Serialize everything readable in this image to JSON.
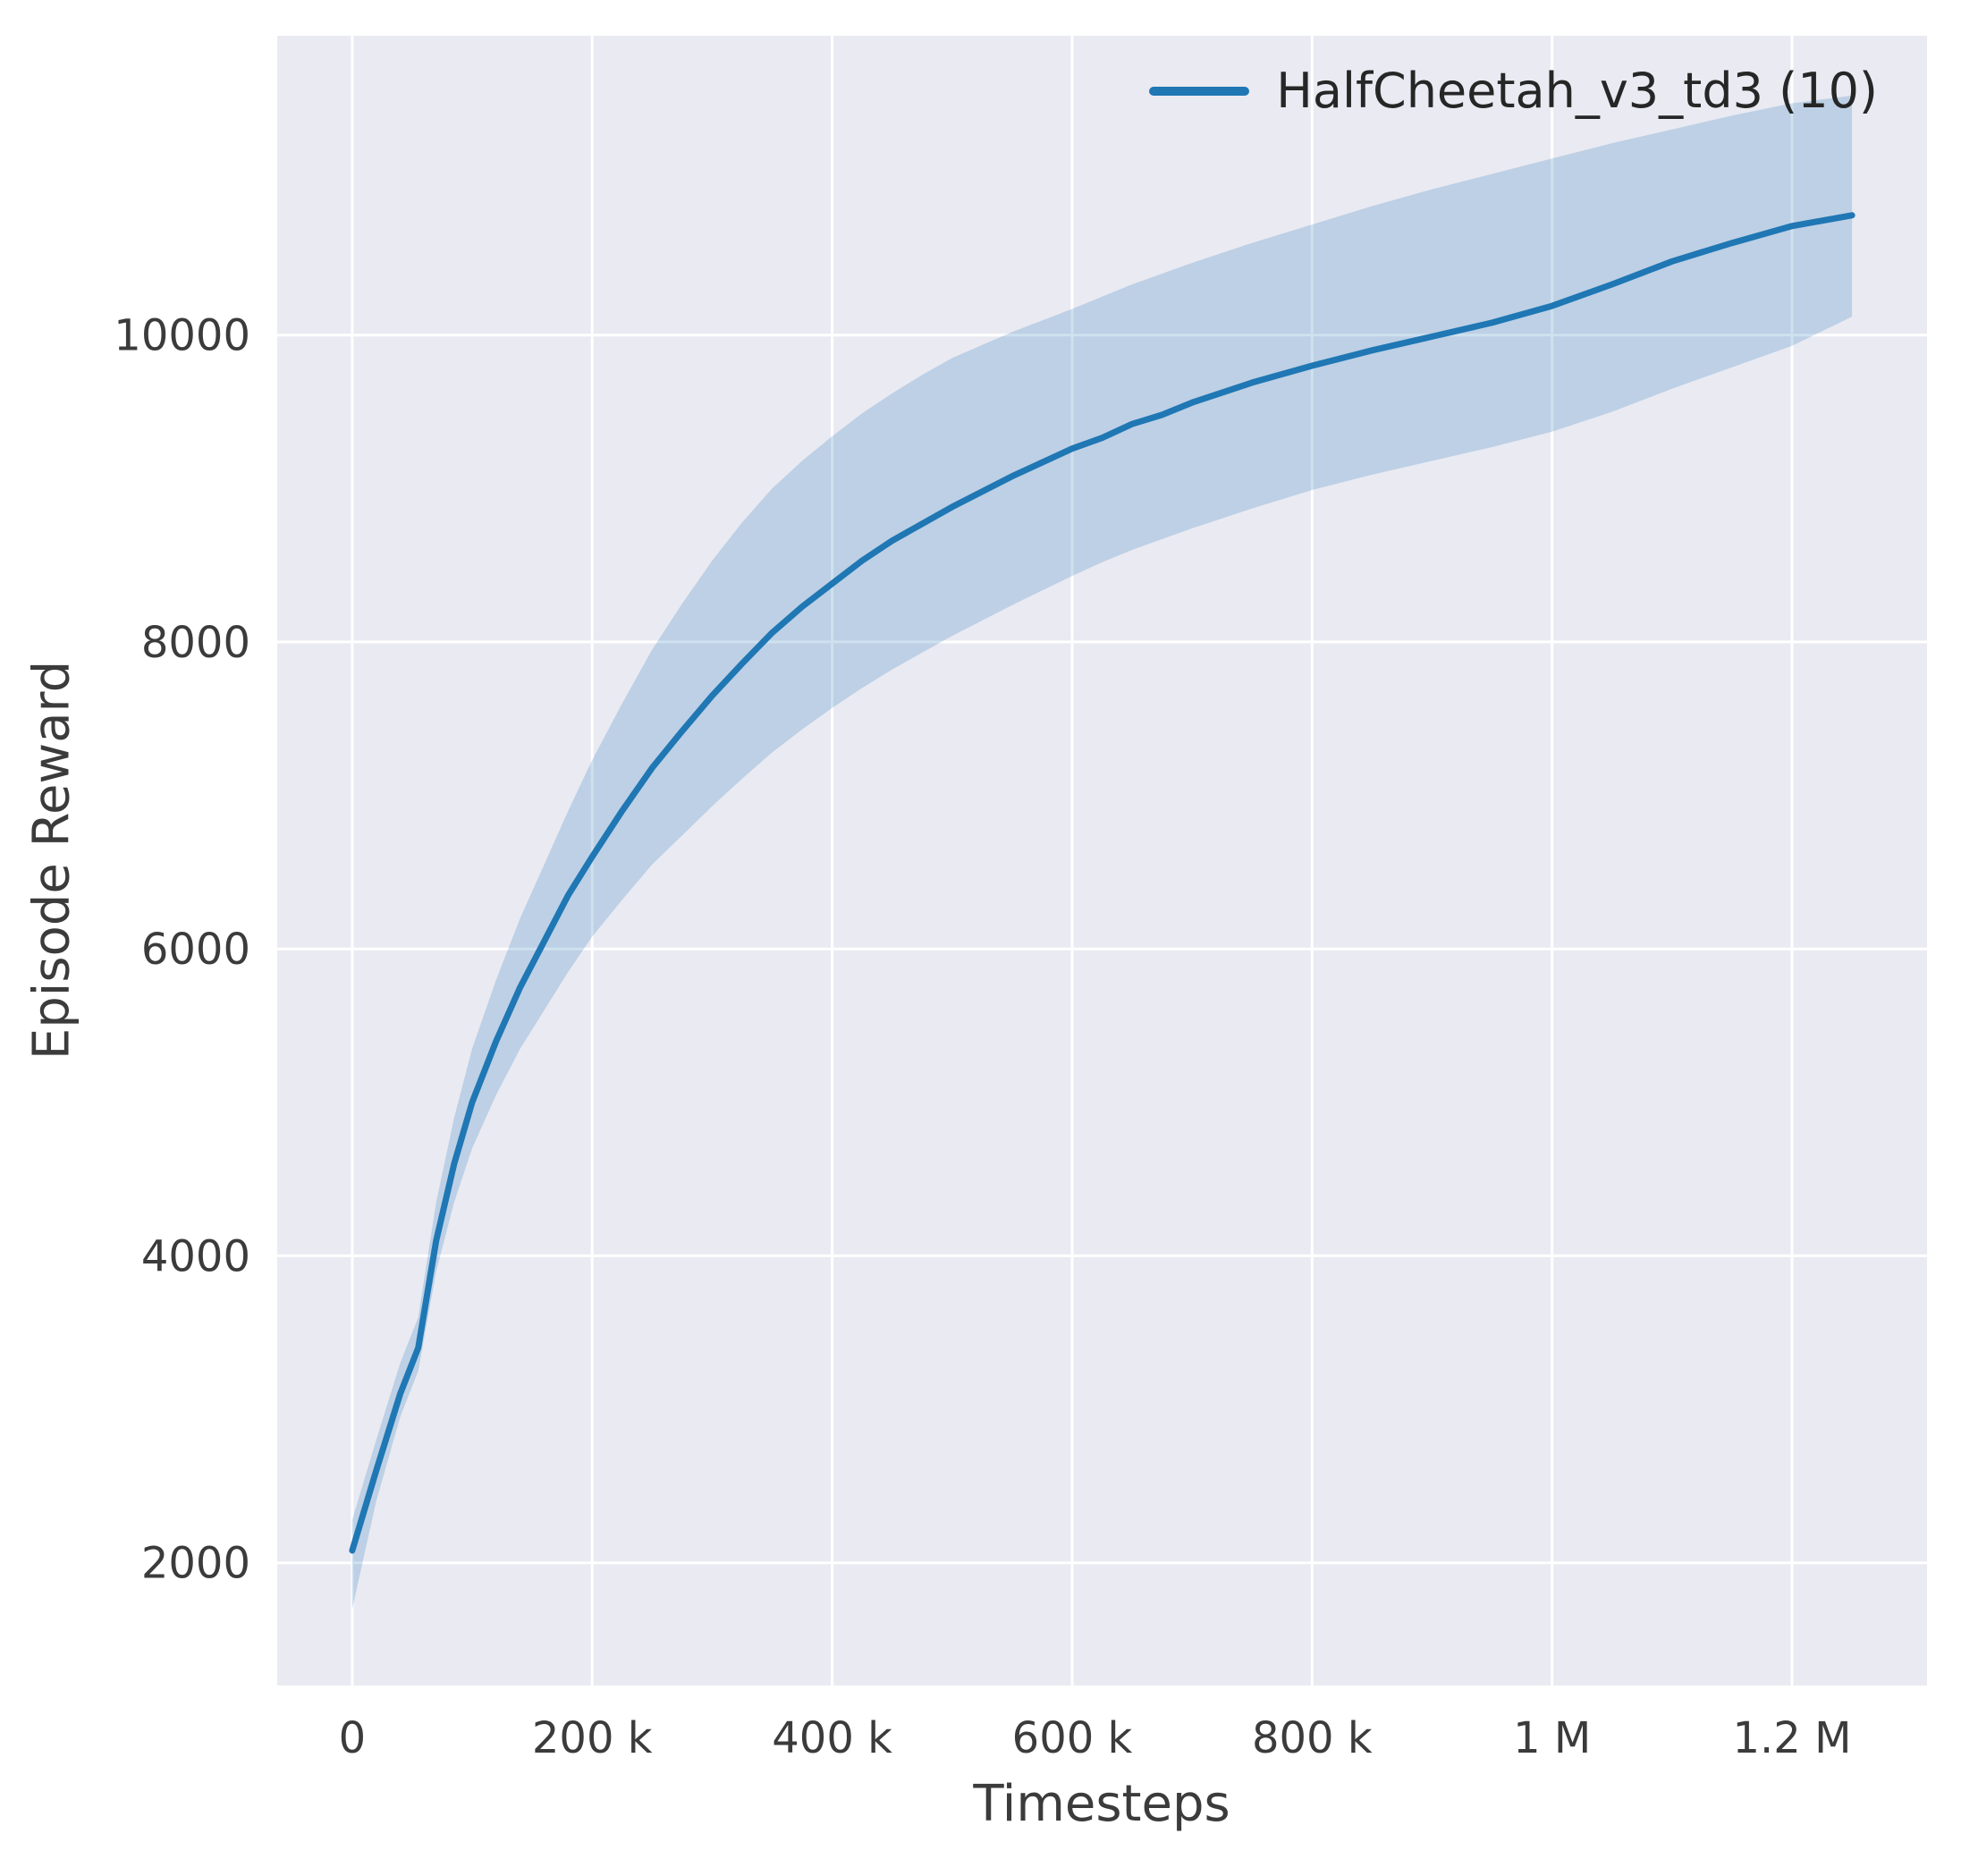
{
  "chart_data": {
    "type": "line",
    "title": "",
    "xlabel": "Timesteps",
    "ylabel": "Episode Reward",
    "grid": true,
    "background": "#eaeaf2",
    "gridline_color": "#ffffff",
    "tick_color": "#3b3b3b",
    "legend_position": "upper right",
    "legend": [
      {
        "label": "HalfCheetah_v3_td3 (10)",
        "color": "#1f77b4"
      }
    ],
    "xlim_thousands": [
      -62.5,
      1312.5
    ],
    "ylim": [
      1200,
      11950
    ],
    "xticks": [
      {
        "value": 0,
        "label": "0"
      },
      {
        "value": 200,
        "label": "200 k"
      },
      {
        "value": 400,
        "label": "400 k"
      },
      {
        "value": 600,
        "label": "600 k"
      },
      {
        "value": 800,
        "label": "800 k"
      },
      {
        "value": 1000,
        "label": "1 M"
      },
      {
        "value": 1200,
        "label": "1.2 M"
      }
    ],
    "yticks": [
      {
        "value": 2000,
        "label": "2000"
      },
      {
        "value": 4000,
        "label": "4000"
      },
      {
        "value": 6000,
        "label": "6000"
      },
      {
        "value": 8000,
        "label": "8000"
      },
      {
        "value": 10000,
        "label": "10000"
      }
    ],
    "series": [
      {
        "name": "HalfCheetah_v3_td3 (10)",
        "color": "#1f77b4",
        "band_opacity": 0.22,
        "line_width": 7,
        "x_thousands": [
          0,
          20,
          40,
          55,
          70,
          85,
          100,
          120,
          140,
          160,
          180,
          200,
          225,
          250,
          275,
          300,
          325,
          350,
          375,
          400,
          425,
          450,
          475,
          500,
          550,
          600,
          625,
          650,
          675,
          700,
          750,
          800,
          850,
          900,
          950,
          1000,
          1050,
          1100,
          1150,
          1200,
          1250
        ],
        "mean": [
          2080,
          2600,
          3100,
          3400,
          4100,
          4600,
          5000,
          5400,
          5750,
          6050,
          6350,
          6600,
          6900,
          7180,
          7420,
          7650,
          7860,
          8060,
          8230,
          8380,
          8530,
          8660,
          8770,
          8880,
          9080,
          9260,
          9330,
          9420,
          9480,
          9560,
          9690,
          9800,
          9900,
          9990,
          10080,
          10190,
          10330,
          10480,
          10600,
          10710,
          10780
        ],
        "lower": [
          1700,
          2400,
          2950,
          3250,
          3900,
          4350,
          4700,
          5050,
          5350,
          5600,
          5850,
          6080,
          6320,
          6550,
          6740,
          6930,
          7110,
          7280,
          7430,
          7570,
          7700,
          7820,
          7930,
          8040,
          8240,
          8430,
          8520,
          8600,
          8670,
          8740,
          8870,
          8990,
          9090,
          9180,
          9270,
          9370,
          9500,
          9650,
          9790,
          9930,
          10120
        ],
        "upper": [
          2280,
          2800,
          3300,
          3600,
          4350,
          4900,
          5350,
          5800,
          6200,
          6550,
          6900,
          7230,
          7600,
          7950,
          8250,
          8530,
          8780,
          9000,
          9180,
          9340,
          9490,
          9620,
          9740,
          9850,
          10020,
          10170,
          10250,
          10330,
          10400,
          10470,
          10600,
          10720,
          10840,
          10950,
          11050,
          11150,
          11250,
          11340,
          11430,
          11510,
          11560
        ]
      }
    ]
  }
}
